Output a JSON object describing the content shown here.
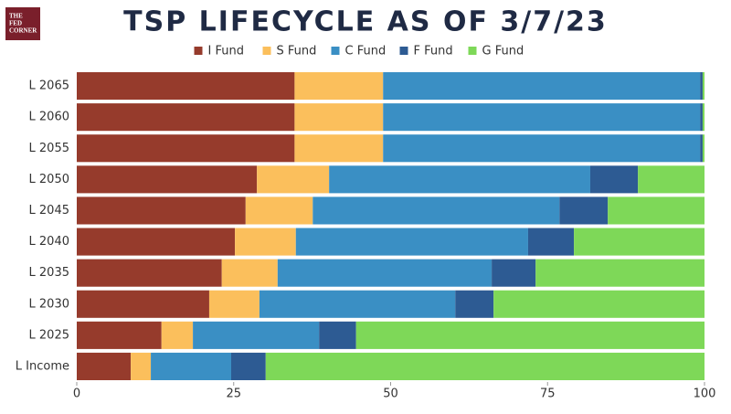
{
  "logo": [
    "THE",
    "FED",
    "CORNER"
  ],
  "chart_data": {
    "type": "bar",
    "orientation": "horizontal",
    "stacked": true,
    "title": "TSP LIFECYCLE AS OF 3/7/23",
    "categories": [
      "L 2065",
      "L 2060",
      "L 2055",
      "L 2050",
      "L 2045",
      "L 2040",
      "L 2035",
      "L 2030",
      "L 2025",
      "L Income"
    ],
    "series": [
      {
        "name": "I Fund",
        "color": "#963b2c",
        "values": [
          34.7,
          34.7,
          34.7,
          28.7,
          26.9,
          25.2,
          23.1,
          21.1,
          13.5,
          8.6
        ]
      },
      {
        "name": "S Fund",
        "color": "#fbbf5c",
        "values": [
          14.1,
          14.1,
          14.1,
          11.5,
          10.7,
          9.7,
          8.9,
          8.0,
          5.0,
          3.2
        ]
      },
      {
        "name": "C Fund",
        "color": "#3a8fc4",
        "values": [
          50.5,
          50.5,
          50.5,
          41.6,
          39.3,
          37.0,
          34.1,
          31.2,
          20.1,
          12.8
        ]
      },
      {
        "name": "F Fund",
        "color": "#2d5b93",
        "values": [
          0.4,
          0.4,
          0.4,
          7.6,
          7.7,
          7.3,
          7.0,
          6.1,
          5.9,
          5.5
        ]
      },
      {
        "name": "G Fund",
        "color": "#7ed858",
        "values": [
          0.3,
          0.3,
          0.3,
          10.6,
          15.4,
          20.8,
          26.9,
          33.6,
          55.5,
          69.9
        ]
      }
    ],
    "xlim": [
      0,
      100
    ],
    "xticks": [
      0,
      25,
      50,
      75,
      100
    ],
    "legend": "top"
  }
}
